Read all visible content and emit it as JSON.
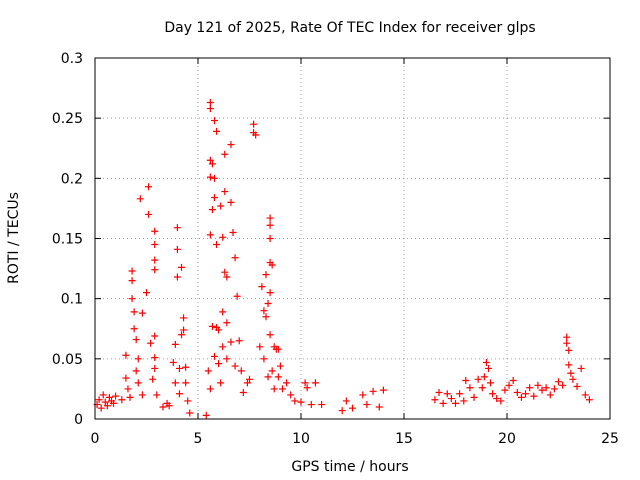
{
  "chart_data": {
    "type": "scatter",
    "title": "Day 121 of 2025, Rate Of TEC Index for receiver glps",
    "xlabel": "GPS time / hours",
    "ylabel": "ROTI / TECUs",
    "xlim": [
      0,
      25
    ],
    "ylim": [
      0,
      0.3
    ],
    "x_ticks": [
      0,
      5,
      10,
      15,
      20,
      25
    ],
    "x_tick_labels": [
      "0",
      "5",
      "10",
      "15",
      "20",
      "25"
    ],
    "y_ticks": [
      0,
      0.05,
      0.1,
      0.15,
      0.2,
      0.25,
      0.3
    ],
    "y_tick_labels": [
      "0",
      "0.05",
      "0.1",
      "0.15",
      "0.2",
      "0.25",
      "0.3"
    ],
    "grid": true,
    "marker": "+",
    "color": "#ff0000",
    "series": [
      {
        "points": [
          [
            0.1,
            0.012
          ],
          [
            0.2,
            0.016
          ],
          [
            0.3,
            0.009
          ],
          [
            0.4,
            0.02
          ],
          [
            0.5,
            0.014
          ],
          [
            0.6,
            0.011
          ],
          [
            0.7,
            0.018
          ],
          [
            0.8,
            0.015
          ],
          [
            0.9,
            0.013
          ],
          [
            1.0,
            0.019
          ],
          [
            1.3,
            0.016
          ],
          [
            1.5,
            0.053
          ],
          [
            1.5,
            0.034
          ],
          [
            1.6,
            0.025
          ],
          [
            1.7,
            0.018
          ],
          [
            1.8,
            0.123
          ],
          [
            1.8,
            0.115
          ],
          [
            1.8,
            0.1
          ],
          [
            1.9,
            0.089
          ],
          [
            1.9,
            0.075
          ],
          [
            2.0,
            0.066
          ],
          [
            2.0,
            0.04
          ],
          [
            2.1,
            0.05
          ],
          [
            2.1,
            0.03
          ],
          [
            2.2,
            0.183
          ],
          [
            2.3,
            0.088
          ],
          [
            2.3,
            0.02
          ],
          [
            2.5,
            0.105
          ],
          [
            2.6,
            0.193
          ],
          [
            2.6,
            0.17
          ],
          [
            2.7,
            0.063
          ],
          [
            2.8,
            0.033
          ],
          [
            2.9,
            0.156
          ],
          [
            2.9,
            0.145
          ],
          [
            2.9,
            0.132
          ],
          [
            2.9,
            0.124
          ],
          [
            2.9,
            0.069
          ],
          [
            2.9,
            0.051
          ],
          [
            2.9,
            0.042
          ],
          [
            3.0,
            0.02
          ],
          [
            3.3,
            0.01
          ],
          [
            3.5,
            0.013
          ],
          [
            3.6,
            0.011
          ],
          [
            3.8,
            0.047
          ],
          [
            3.9,
            0.03
          ],
          [
            3.9,
            0.062
          ],
          [
            4.0,
            0.159
          ],
          [
            4.0,
            0.141
          ],
          [
            4.0,
            0.118
          ],
          [
            4.1,
            0.042
          ],
          [
            4.1,
            0.021
          ],
          [
            4.2,
            0.126
          ],
          [
            4.2,
            0.07
          ],
          [
            4.3,
            0.084
          ],
          [
            4.3,
            0.074
          ],
          [
            4.4,
            0.043
          ],
          [
            4.4,
            0.03
          ],
          [
            4.5,
            0.015
          ],
          [
            4.6,
            0.005
          ],
          [
            5.4,
            0.003
          ],
          [
            5.5,
            0.04
          ],
          [
            5.6,
            0.263
          ],
          [
            5.6,
            0.258
          ],
          [
            5.6,
            0.215
          ],
          [
            5.6,
            0.201
          ],
          [
            5.6,
            0.153
          ],
          [
            5.6,
            0.025
          ],
          [
            5.7,
            0.212
          ],
          [
            5.7,
            0.174
          ],
          [
            5.7,
            0.077
          ],
          [
            5.8,
            0.248
          ],
          [
            5.8,
            0.2
          ],
          [
            5.8,
            0.184
          ],
          [
            5.8,
            0.052
          ],
          [
            5.9,
            0.239
          ],
          [
            5.9,
            0.145
          ],
          [
            5.9,
            0.076
          ],
          [
            6.0,
            0.074
          ],
          [
            6.0,
            0.046
          ],
          [
            6.1,
            0.03
          ],
          [
            6.1,
            0.177
          ],
          [
            6.2,
            0.151
          ],
          [
            6.2,
            0.089
          ],
          [
            6.2,
            0.06
          ],
          [
            6.3,
            0.22
          ],
          [
            6.3,
            0.189
          ],
          [
            6.3,
            0.122
          ],
          [
            6.4,
            0.118
          ],
          [
            6.4,
            0.08
          ],
          [
            6.4,
            0.05
          ],
          [
            6.6,
            0.228
          ],
          [
            6.6,
            0.18
          ],
          [
            6.6,
            0.064
          ],
          [
            6.7,
            0.155
          ],
          [
            6.8,
            0.134
          ],
          [
            6.8,
            0.044
          ],
          [
            6.9,
            0.102
          ],
          [
            7.0,
            0.065
          ],
          [
            7.1,
            0.04
          ],
          [
            7.2,
            0.022
          ],
          [
            7.4,
            0.03
          ],
          [
            7.5,
            0.033
          ],
          [
            7.7,
            0.245
          ],
          [
            7.7,
            0.238
          ],
          [
            7.8,
            0.236
          ],
          [
            8.0,
            0.06
          ],
          [
            8.1,
            0.11
          ],
          [
            8.2,
            0.09
          ],
          [
            8.2,
            0.05
          ],
          [
            8.3,
            0.085
          ],
          [
            8.3,
            0.12
          ],
          [
            8.4,
            0.096
          ],
          [
            8.4,
            0.035
          ],
          [
            8.5,
            0.167
          ],
          [
            8.5,
            0.161
          ],
          [
            8.5,
            0.15
          ],
          [
            8.5,
            0.13
          ],
          [
            8.5,
            0.105
          ],
          [
            8.5,
            0.07
          ],
          [
            8.6,
            0.128
          ],
          [
            8.6,
            0.04
          ],
          [
            8.7,
            0.06
          ],
          [
            8.7,
            0.025
          ],
          [
            8.8,
            0.058
          ],
          [
            8.9,
            0.058
          ],
          [
            8.9,
            0.035
          ],
          [
            9.0,
            0.044
          ],
          [
            9.1,
            0.025
          ],
          [
            9.3,
            0.03
          ],
          [
            9.5,
            0.02
          ],
          [
            9.7,
            0.015
          ],
          [
            10.0,
            0.014
          ],
          [
            10.2,
            0.03
          ],
          [
            10.3,
            0.026
          ],
          [
            10.5,
            0.012
          ],
          [
            10.7,
            0.03
          ],
          [
            11.0,
            0.012
          ],
          [
            12.0,
            0.007
          ],
          [
            12.2,
            0.015
          ],
          [
            12.5,
            0.009
          ],
          [
            13.0,
            0.02
          ],
          [
            13.2,
            0.012
          ],
          [
            13.5,
            0.023
          ],
          [
            13.8,
            0.01
          ],
          [
            14.0,
            0.024
          ],
          [
            16.5,
            0.016
          ],
          [
            16.7,
            0.022
          ],
          [
            16.9,
            0.013
          ],
          [
            17.1,
            0.021
          ],
          [
            17.3,
            0.017
          ],
          [
            17.5,
            0.013
          ],
          [
            17.7,
            0.021
          ],
          [
            17.9,
            0.015
          ],
          [
            18.0,
            0.032
          ],
          [
            18.2,
            0.026
          ],
          [
            18.4,
            0.018
          ],
          [
            18.6,
            0.033
          ],
          [
            18.8,
            0.026
          ],
          [
            18.9,
            0.035
          ],
          [
            19.0,
            0.047
          ],
          [
            19.1,
            0.042
          ],
          [
            19.2,
            0.03
          ],
          [
            19.3,
            0.021
          ],
          [
            19.5,
            0.017
          ],
          [
            19.7,
            0.015
          ],
          [
            19.9,
            0.024
          ],
          [
            20.1,
            0.028
          ],
          [
            20.3,
            0.032
          ],
          [
            20.5,
            0.022
          ],
          [
            20.7,
            0.018
          ],
          [
            20.9,
            0.021
          ],
          [
            21.1,
            0.026
          ],
          [
            21.3,
            0.019
          ],
          [
            21.5,
            0.028
          ],
          [
            21.7,
            0.024
          ],
          [
            21.9,
            0.026
          ],
          [
            22.1,
            0.02
          ],
          [
            22.3,
            0.025
          ],
          [
            22.5,
            0.031
          ],
          [
            22.7,
            0.028
          ],
          [
            22.9,
            0.068
          ],
          [
            22.9,
            0.063
          ],
          [
            23.0,
            0.057
          ],
          [
            23.0,
            0.045
          ],
          [
            23.1,
            0.038
          ],
          [
            23.2,
            0.033
          ],
          [
            23.4,
            0.027
          ],
          [
            23.6,
            0.042
          ],
          [
            23.8,
            0.02
          ],
          [
            24.0,
            0.016
          ]
        ]
      }
    ]
  }
}
